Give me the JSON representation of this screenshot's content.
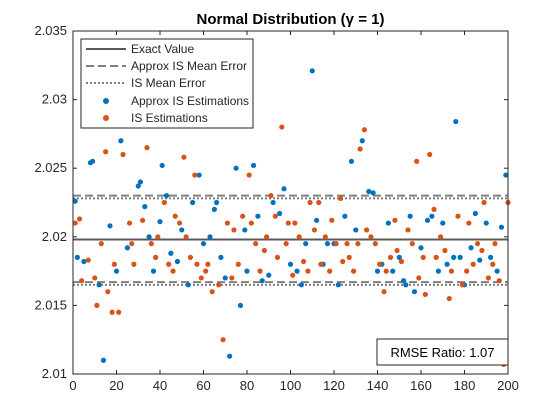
{
  "chart_data": {
    "type": "scatter",
    "title": "Normal Distribution (γ = 1)",
    "xlabel": "",
    "ylabel": "",
    "xlim": [
      0,
      200
    ],
    "ylim": [
      2.01,
      2.035
    ],
    "xticks": [
      0,
      20,
      40,
      60,
      80,
      100,
      120,
      140,
      160,
      180,
      200
    ],
    "yticks": [
      2.01,
      2.015,
      2.02,
      2.025,
      2.03,
      2.035
    ],
    "xtick_labels": [
      "0",
      "20",
      "40",
      "60",
      "80",
      "100",
      "120",
      "140",
      "160",
      "180",
      "200"
    ],
    "ytick_labels": [
      "2.01",
      "2.015",
      "2.02",
      "2.025",
      "2.03",
      "2.035"
    ],
    "grid": false,
    "legend_position": "top-left",
    "lines": [
      {
        "name": "Exact Value",
        "style": "solid",
        "color": "#595959",
        "values": [
          2.0198
        ]
      },
      {
        "name": "Approx IS Mean Error",
        "style": "dashed",
        "color": "#808080",
        "values": [
          2.0167,
          2.023
        ]
      },
      {
        "name": "IS Mean Error",
        "style": "dotted",
        "color": "#808080",
        "values": [
          2.0165,
          2.0228
        ]
      }
    ],
    "series": [
      {
        "name": "Approx IS Estimations",
        "color": "#0072BD",
        "points": [
          [
            1,
            2.0226
          ],
          [
            2,
            2.0185
          ],
          [
            5,
            2.0182
          ],
          [
            8,
            2.0254
          ],
          [
            9,
            2.0255
          ],
          [
            12,
            2.0165
          ],
          [
            14,
            2.011
          ],
          [
            17,
            2.0208
          ],
          [
            20,
            2.0175
          ],
          [
            22,
            2.027
          ],
          [
            25,
            2.0192
          ],
          [
            30,
            2.0237
          ],
          [
            31,
            2.024
          ],
          [
            33,
            2.0222
          ],
          [
            35,
            2.02
          ],
          [
            37,
            2.0175
          ],
          [
            40,
            2.0211
          ],
          [
            41,
            2.0252
          ],
          [
            43,
            2.023
          ],
          [
            45,
            2.0188
          ],
          [
            48,
            2.0182
          ],
          [
            50,
            2.0205
          ],
          [
            53,
            2.0165
          ],
          [
            55,
            2.0225
          ],
          [
            58,
            2.0245
          ],
          [
            60,
            2.0195
          ],
          [
            63,
            2.02
          ],
          [
            65,
            2.022
          ],
          [
            66,
            2.0225
          ],
          [
            68,
            2.0185
          ],
          [
            70,
            2.017
          ],
          [
            72,
            2.0113
          ],
          [
            75,
            2.025
          ],
          [
            77,
            2.015
          ],
          [
            79,
            2.0205
          ],
          [
            80,
            2.0175
          ],
          [
            83,
            2.0252
          ],
          [
            85,
            2.0215
          ],
          [
            87,
            2.0168
          ],
          [
            90,
            2.0172
          ],
          [
            92,
            2.0225
          ],
          [
            95,
            2.0217
          ],
          [
            97,
            2.0235
          ],
          [
            100,
            2.018
          ],
          [
            103,
            2.0175
          ],
          [
            105,
            2.0165
          ],
          [
            107,
            2.0195
          ],
          [
            110,
            2.0321
          ],
          [
            112,
            2.0212
          ],
          [
            115,
            2.018
          ],
          [
            117,
            2.0195
          ],
          [
            120,
            2.0195
          ],
          [
            122,
            2.0165
          ],
          [
            125,
            2.0215
          ],
          [
            128,
            2.0255
          ],
          [
            130,
            2.0205
          ],
          [
            133,
            2.027
          ],
          [
            136,
            2.0233
          ],
          [
            138,
            2.0232
          ],
          [
            140,
            2.0175
          ],
          [
            142,
            2.018
          ],
          [
            145,
            2.021
          ],
          [
            147,
            2.0175
          ],
          [
            150,
            2.0185
          ],
          [
            152,
            2.0168
          ],
          [
            153,
            2.0165
          ],
          [
            155,
            2.0215
          ],
          [
            157,
            2.016
          ],
          [
            160,
            2.0192
          ],
          [
            163,
            2.0212
          ],
          [
            165,
            2.0215
          ],
          [
            168,
            2.0175
          ],
          [
            170,
            2.021
          ],
          [
            172,
            2.018
          ],
          [
            175,
            2.0185
          ],
          [
            176,
            2.0284
          ],
          [
            178,
            2.0185
          ],
          [
            180,
            2.0165
          ],
          [
            183,
            2.0192
          ],
          [
            185,
            2.0217
          ],
          [
            187,
            2.0183
          ],
          [
            190,
            2.021
          ],
          [
            192,
            2.0185
          ],
          [
            195,
            2.0175
          ],
          [
            197,
            2.0207
          ],
          [
            199,
            2.0245
          ]
        ]
      },
      {
        "name": "IS Estimations",
        "color": "#D95319",
        "points": [
          [
            1,
            2.021
          ],
          [
            3,
            2.0213
          ],
          [
            4,
            2.0168
          ],
          [
            7,
            2.0183
          ],
          [
            10,
            2.017
          ],
          [
            11,
            2.015
          ],
          [
            13,
            2.0195
          ],
          [
            15,
            2.0262
          ],
          [
            16,
            2.016
          ],
          [
            18,
            2.0145
          ],
          [
            19,
            2.018
          ],
          [
            21,
            2.0145
          ],
          [
            23,
            2.026
          ],
          [
            26,
            2.021
          ],
          [
            27,
            2.0195
          ],
          [
            28,
            2.018
          ],
          [
            32,
            2.0212
          ],
          [
            34,
            2.0265
          ],
          [
            36,
            2.0195
          ],
          [
            38,
            2.0185
          ],
          [
            39,
            2.02
          ],
          [
            42,
            2.0225
          ],
          [
            44,
            2.018
          ],
          [
            46,
            2.0175
          ],
          [
            47,
            2.0215
          ],
          [
            49,
            2.021
          ],
          [
            51,
            2.0258
          ],
          [
            52,
            2.02
          ],
          [
            54,
            2.0185
          ],
          [
            56,
            2.0245
          ],
          [
            57,
            2.018
          ],
          [
            59,
            2.017
          ],
          [
            61,
            2.0175
          ],
          [
            62,
            2.018
          ],
          [
            64,
            2.016
          ],
          [
            67,
            2.0165
          ],
          [
            69,
            2.0125
          ],
          [
            71,
            2.021
          ],
          [
            73,
            2.017
          ],
          [
            74,
            2.0205
          ],
          [
            76,
            2.018
          ],
          [
            78,
            2.0215
          ],
          [
            81,
            2.0245
          ],
          [
            82,
            2.021
          ],
          [
            84,
            2.0195
          ],
          [
            86,
            2.0175
          ],
          [
            88,
            2.019
          ],
          [
            89,
            2.02
          ],
          [
            91,
            2.023
          ],
          [
            93,
            2.0215
          ],
          [
            94,
            2.0185
          ],
          [
            96,
            2.028
          ],
          [
            98,
            2.0195
          ],
          [
            99,
            2.021
          ],
          [
            101,
            2.0172
          ],
          [
            102,
            2.021
          ],
          [
            104,
            2.02
          ],
          [
            106,
            2.0182
          ],
          [
            108,
            2.0175
          ],
          [
            109,
            2.0225
          ],
          [
            111,
            2.0205
          ],
          [
            113,
            2.0225
          ],
          [
            114,
            2.018
          ],
          [
            116,
            2.02
          ],
          [
            118,
            2.0175
          ],
          [
            119,
            2.0212
          ],
          [
            121,
            2.0195
          ],
          [
            123,
            2.0228
          ],
          [
            124,
            2.0182
          ],
          [
            126,
            2.0195
          ],
          [
            127,
            2.0185
          ],
          [
            129,
            2.0175
          ],
          [
            131,
            2.0195
          ],
          [
            132,
            2.0264
          ],
          [
            134,
            2.0278
          ],
          [
            135,
            2.0205
          ],
          [
            137,
            2.02
          ],
          [
            139,
            2.0195
          ],
          [
            141,
            2.018
          ],
          [
            143,
            2.016
          ],
          [
            144,
            2.0175
          ],
          [
            146,
            2.0185
          ],
          [
            148,
            2.0212
          ],
          [
            149,
            2.019
          ],
          [
            151,
            2.0182
          ],
          [
            154,
            2.0205
          ],
          [
            156,
            2.0195
          ],
          [
            158,
            2.0255
          ],
          [
            159,
            2.017
          ],
          [
            161,
            2.0185
          ],
          [
            162,
            2.0158
          ],
          [
            164,
            2.026
          ],
          [
            166,
            2.022
          ],
          [
            167,
            2.0185
          ],
          [
            169,
            2.02
          ],
          [
            171,
            2.019
          ],
          [
            173,
            2.0155
          ],
          [
            174,
            2.0175
          ],
          [
            177,
            2.0215
          ],
          [
            179,
            2.0165
          ],
          [
            181,
            2.0175
          ],
          [
            182,
            2.021
          ],
          [
            184,
            2.018
          ],
          [
            186,
            2.0195
          ],
          [
            188,
            2.019
          ],
          [
            189,
            2.0225
          ],
          [
            191,
            2.017
          ],
          [
            193,
            2.018
          ],
          [
            194,
            2.0195
          ],
          [
            196,
            2.0168
          ],
          [
            198,
            2.0107
          ],
          [
            200,
            2.0225
          ]
        ]
      }
    ],
    "legend": [
      {
        "label": "Exact Value",
        "marker": "solid-line"
      },
      {
        "label": "Approx IS Mean Error",
        "marker": "dashed-line"
      },
      {
        "label": "IS Mean Error",
        "marker": "dotted-line"
      },
      {
        "label": "Approx IS Estimations",
        "marker": "dot",
        "color": "#0072BD"
      },
      {
        "label": "IS Estimations",
        "marker": "dot",
        "color": "#D95319"
      }
    ],
    "annotation": {
      "text": "RMSE Ratio: 1.07"
    }
  }
}
